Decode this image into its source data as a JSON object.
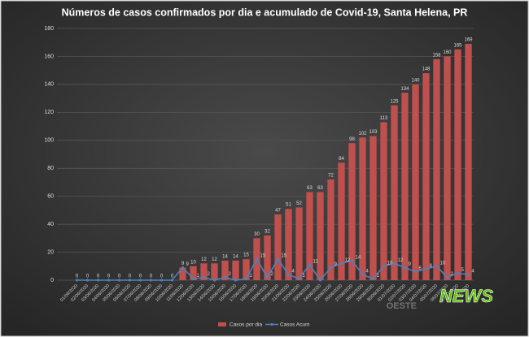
{
  "chart_data": {
    "type": "bar_line",
    "title": "Números de casos confirmados  por dia e acumulado de Covid-19, Santa Helena, PR",
    "categories": [
      "01/06/2020",
      "02/06/2020",
      "03/06/2020",
      "04/06/2020",
      "05/06/2020",
      "06/06/2020",
      "07/06/2020",
      "08/06/2020",
      "09/06/2020",
      "10/06/2020",
      "11/06/2020",
      "12/06/2020",
      "13/06/2020",
      "14/06/2020",
      "15/06/2020",
      "16/06/2020",
      "17/06/2020",
      "18/06/2020",
      "19/06/2020",
      "20/06/2020",
      "21/06/2020",
      "22/06/2020",
      "23/06/2020",
      "24/06/2020",
      "25/06/2020",
      "26/06/2020",
      "27/06/2020",
      "28/06/2020",
      "29/06/2020",
      "30/06/2020",
      "01/07/2020",
      "02/07/2020",
      "03/07/2020",
      "04/07/2020",
      "05/07/2020",
      "06/07/2020",
      "07/07/2020",
      "08/07/2020"
    ],
    "series": [
      {
        "name": "Casos por dia",
        "color": "#c0504d",
        "kind": "bar",
        "values": [
          0,
          0,
          0,
          0,
          0,
          0,
          0,
          0,
          0,
          0,
          9,
          10,
          12,
          12,
          14,
          14,
          15,
          30,
          32,
          47,
          51,
          52,
          63,
          63,
          72,
          84,
          98,
          102,
          103,
          113,
          125,
          134,
          140,
          148,
          158,
          160,
          165,
          169
        ]
      },
      {
        "name": "Casos Acum",
        "color": "#4f81bd",
        "kind": "line",
        "values": [
          0,
          0,
          0,
          0,
          0,
          0,
          0,
          0,
          0,
          0,
          9,
          1,
          2,
          0,
          2,
          0,
          1,
          15,
          2,
          15,
          4,
          1,
          11,
          0,
          9,
          12,
          14,
          4,
          1,
          10,
          12,
          9,
          6,
          8,
          10,
          2,
          5,
          4
        ]
      }
    ],
    "ylim": [
      0,
      180
    ],
    "yticks": [
      0,
      20,
      40,
      60,
      80,
      100,
      120,
      140,
      160,
      180
    ],
    "grid": true,
    "legend": "bottom",
    "watermark": [
      "OESTE",
      "NEWS"
    ]
  }
}
